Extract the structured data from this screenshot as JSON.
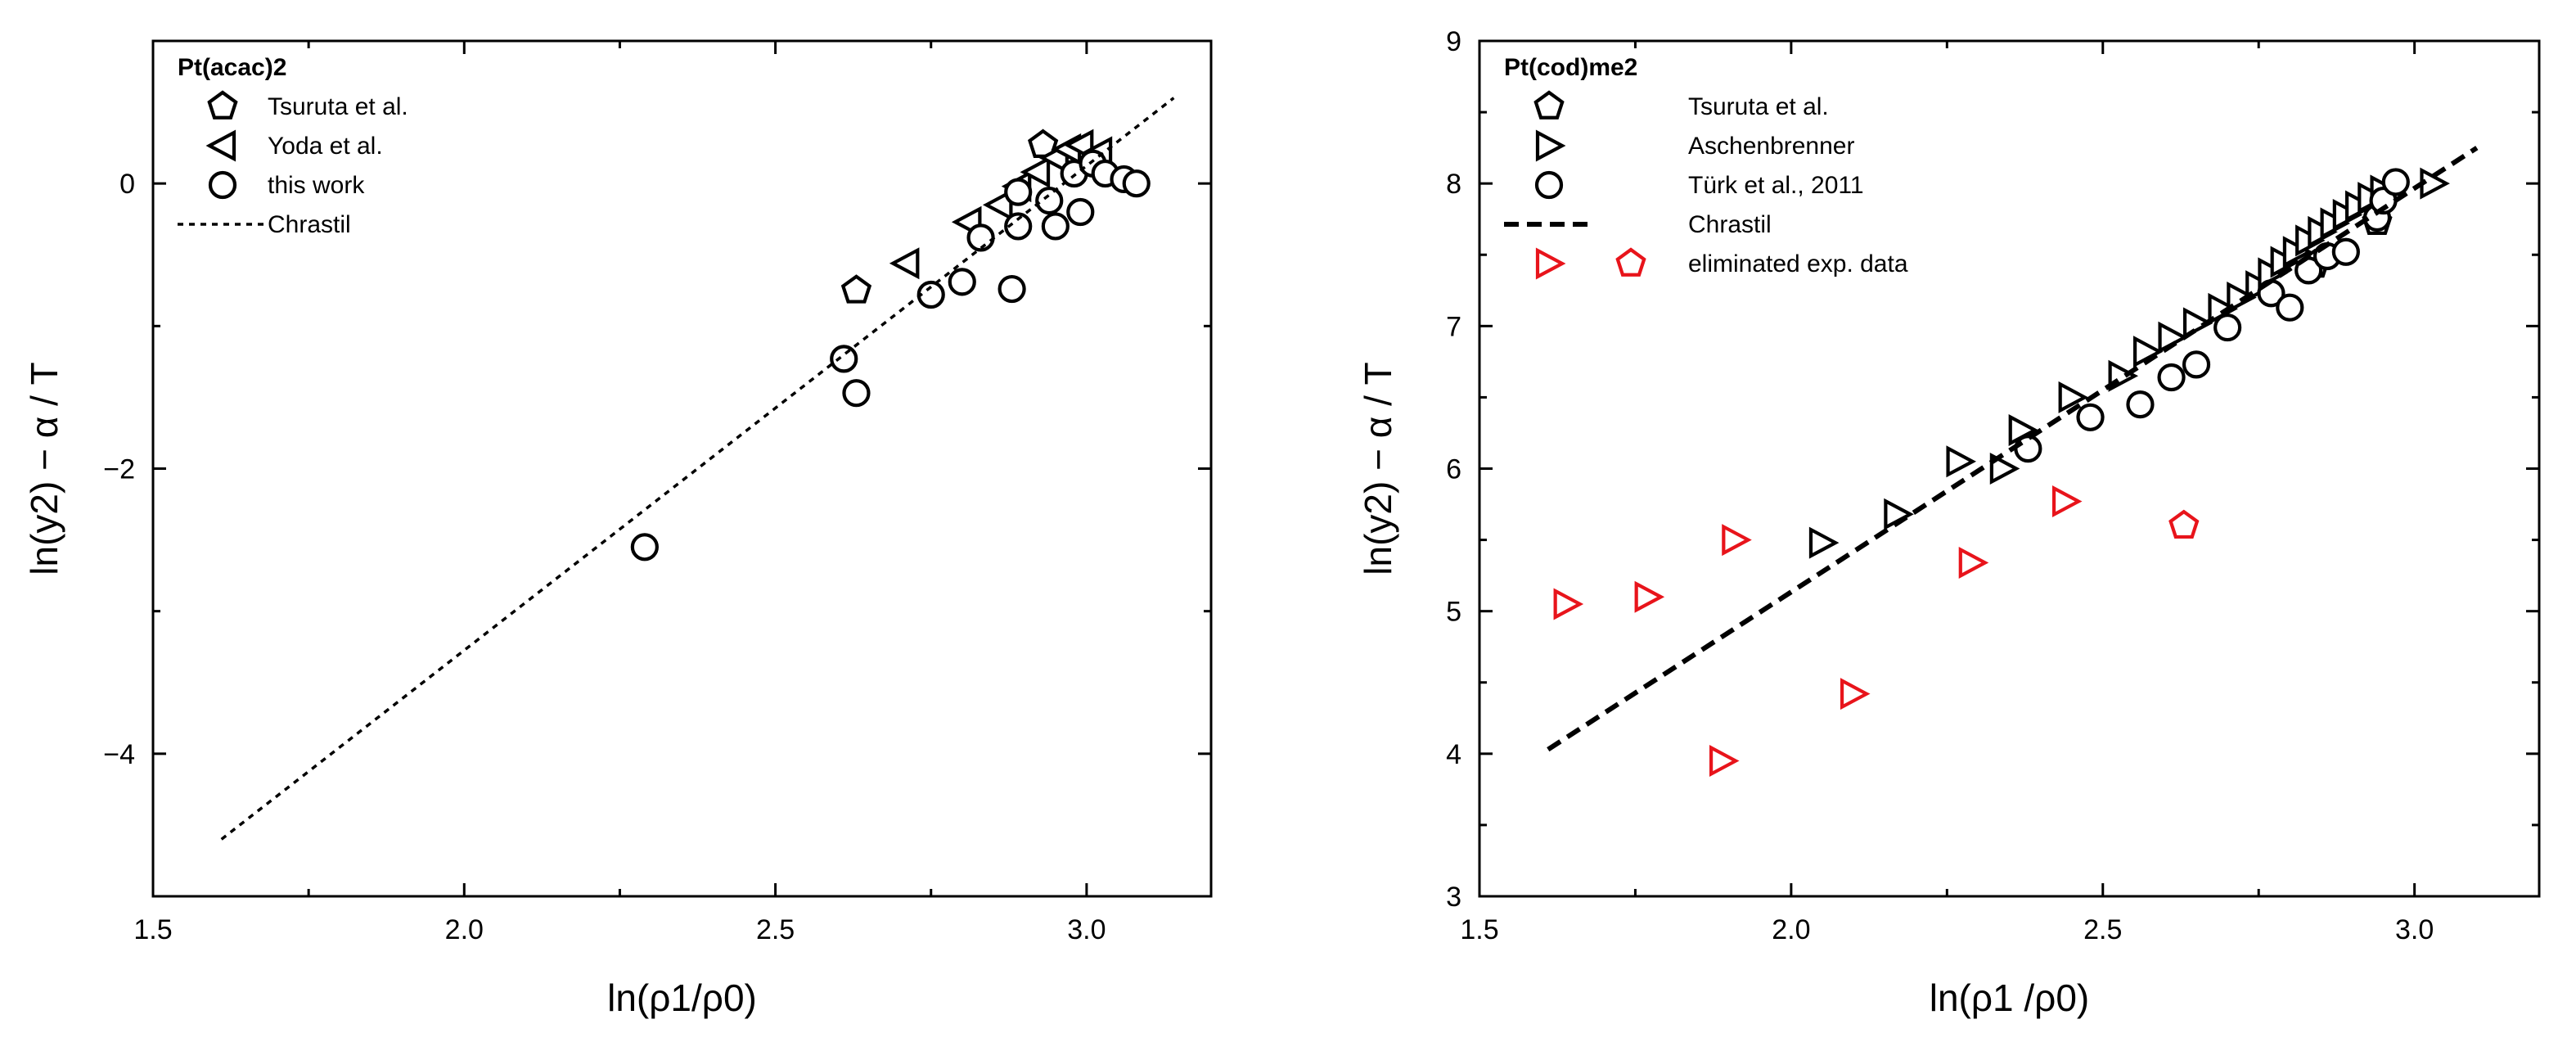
{
  "chart_data": [
    {
      "type": "scatter",
      "panel": "left",
      "title": "",
      "xlabel": "ln(ρ1/ρ0)",
      "ylabel": "ln(y2) − α / T",
      "xlim": [
        1.5,
        3.2
      ],
      "ylim": [
        -5,
        1
      ],
      "xticks": [
        "1.5",
        "2.0",
        "2.5",
        "3.0"
      ],
      "yticks": [
        "−4",
        "−2",
        "0"
      ],
      "legend": {
        "title": "Pt(acac)2",
        "placement": "top-left",
        "entries": [
          "Tsuruta et al.",
          "Yoda et al.",
          "this work",
          "Chrastil"
        ]
      },
      "series": [
        {
          "name": "Tsuruta et al.",
          "marker": "pentagon",
          "color": "#000000",
          "points": [
            [
              2.63,
              -0.75
            ],
            [
              2.93,
              0.27
            ]
          ]
        },
        {
          "name": "Yoda et al.",
          "marker": "triangle-left",
          "color": "#000000",
          "points": [
            [
              2.71,
              -0.56
            ],
            [
              2.81,
              -0.27
            ],
            [
              2.86,
              -0.15
            ],
            [
              2.89,
              -0.02
            ],
            [
              2.92,
              0.08
            ],
            [
              2.95,
              0.18
            ],
            [
              2.97,
              0.24
            ],
            [
              2.99,
              0.27
            ],
            [
              3.02,
              0.22
            ]
          ]
        },
        {
          "name": "this work",
          "marker": "circle",
          "color": "#000000",
          "points": [
            [
              2.29,
              -2.55
            ],
            [
              2.61,
              -1.23
            ],
            [
              2.63,
              -1.47
            ],
            [
              2.75,
              -0.78
            ],
            [
              2.8,
              -0.69
            ],
            [
              2.83,
              -0.38
            ],
            [
              2.88,
              -0.74
            ],
            [
              2.89,
              -0.3
            ],
            [
              2.89,
              -0.06
            ],
            [
              2.94,
              -0.12
            ],
            [
              2.95,
              -0.3
            ],
            [
              2.98,
              0.07
            ],
            [
              2.99,
              -0.2
            ],
            [
              3.01,
              0.14
            ],
            [
              3.03,
              0.07
            ],
            [
              3.06,
              0.03
            ],
            [
              3.08,
              0.0
            ]
          ]
        },
        {
          "name": "Chrastil",
          "type": "line",
          "style": "dotted",
          "color": "#000000",
          "x": [
            1.61,
            3.14
          ],
          "y": [
            -4.6,
            0.6
          ]
        }
      ]
    },
    {
      "type": "scatter",
      "panel": "right",
      "title": "",
      "xlabel": "ln(ρ1 /ρ0)",
      "ylabel": "ln(y2) − α / T",
      "xlim": [
        1.5,
        3.2
      ],
      "ylim": [
        3,
        9
      ],
      "xticks": [
        "1.5",
        "2.0",
        "2.5",
        "3.0"
      ],
      "yticks": [
        "3",
        "4",
        "5",
        "6",
        "7",
        "8",
        "9"
      ],
      "legend": {
        "title": "Pt(cod)me2",
        "placement": "top-left",
        "entries": [
          "Tsuruta et al.",
          "Aschenbrenner",
          "Türk et al., 2011",
          "Chrastil",
          "eliminated exp. data"
        ]
      },
      "series": [
        {
          "name": "Tsuruta et al.",
          "marker": "pentagon",
          "color": "#000000",
          "points": [
            [
              2.84,
              7.43
            ],
            [
              2.94,
              7.73
            ]
          ]
        },
        {
          "name": "Aschenbrenner",
          "marker": "triangle-right",
          "color": "#000000",
          "points": [
            [
              2.05,
              5.48
            ],
            [
              2.17,
              5.68
            ],
            [
              2.27,
              6.05
            ],
            [
              2.34,
              6.0
            ],
            [
              2.37,
              6.27
            ],
            [
              2.45,
              6.5
            ],
            [
              2.53,
              6.65
            ],
            [
              2.57,
              6.82
            ],
            [
              2.61,
              6.92
            ],
            [
              2.65,
              7.02
            ],
            [
              2.69,
              7.12
            ],
            [
              2.72,
              7.2
            ],
            [
              2.75,
              7.28
            ],
            [
              2.77,
              7.37
            ],
            [
              2.79,
              7.45
            ],
            [
              2.81,
              7.52
            ],
            [
              2.83,
              7.6
            ],
            [
              2.85,
              7.66
            ],
            [
              2.87,
              7.72
            ],
            [
              2.89,
              7.78
            ],
            [
              2.91,
              7.84
            ],
            [
              2.93,
              7.9
            ],
            [
              2.95,
              7.95
            ],
            [
              3.03,
              8.0
            ]
          ]
        },
        {
          "name": "Türk et al., 2011",
          "marker": "circle",
          "color": "#000000",
          "points": [
            [
              2.38,
              6.14
            ],
            [
              2.48,
              6.36
            ],
            [
              2.56,
              6.45
            ],
            [
              2.61,
              6.64
            ],
            [
              2.65,
              6.73
            ],
            [
              2.7,
              6.99
            ],
            [
              2.77,
              7.23
            ],
            [
              2.8,
              7.13
            ],
            [
              2.83,
              7.39
            ],
            [
              2.86,
              7.49
            ],
            [
              2.89,
              7.52
            ],
            [
              2.94,
              7.76
            ],
            [
              2.95,
              7.88
            ],
            [
              2.97,
              8.01
            ]
          ]
        },
        {
          "name": "Chrastil",
          "type": "line",
          "style": "dashed",
          "color": "#000000",
          "x": [
            1.61,
            3.1
          ],
          "y": [
            4.03,
            8.25
          ]
        },
        {
          "name": "eliminated exp. data (triangles)",
          "marker": "triangle-right",
          "color": "#e8141b",
          "points": [
            [
              1.64,
              5.05
            ],
            [
              1.77,
              5.1
            ],
            [
              1.89,
              3.95
            ],
            [
              1.91,
              5.5
            ],
            [
              2.1,
              4.42
            ],
            [
              2.29,
              5.34
            ],
            [
              2.44,
              5.77
            ]
          ]
        },
        {
          "name": "eliminated exp. data (pentagons)",
          "marker": "pentagon",
          "color": "#e8141b",
          "points": [
            [
              2.63,
              5.6
            ]
          ]
        }
      ]
    }
  ]
}
